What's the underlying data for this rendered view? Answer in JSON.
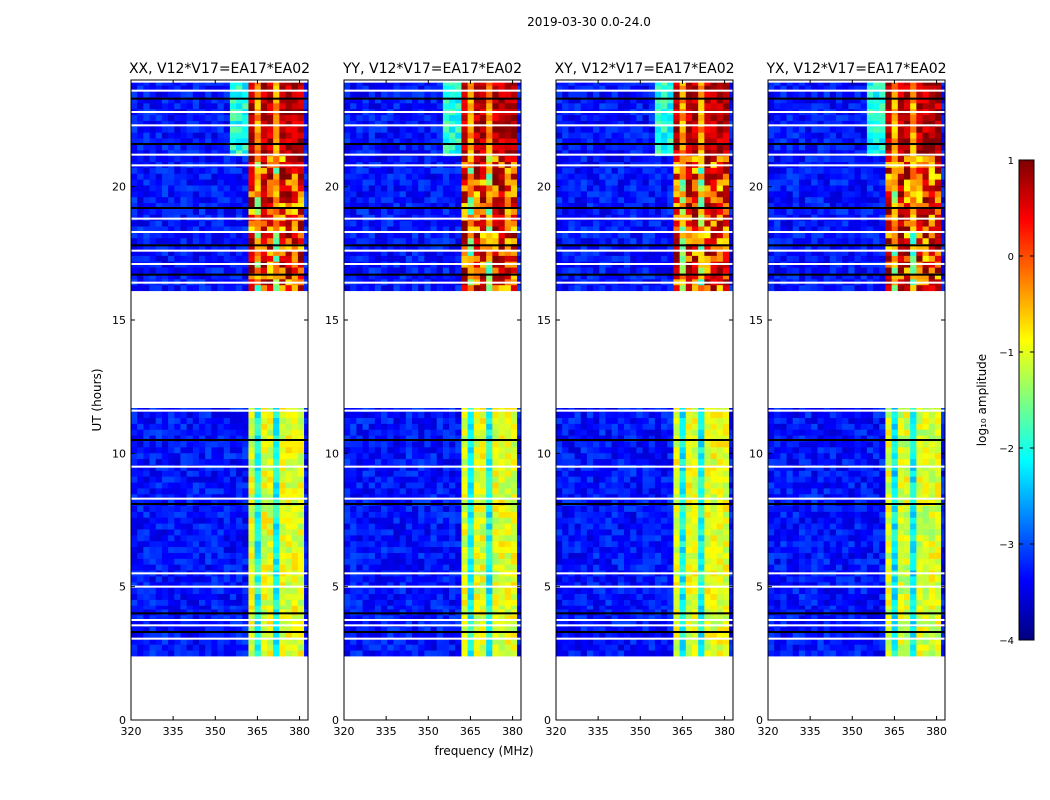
{
  "figure": {
    "suptitle": "2019-03-30 0.0-24.0",
    "ylabel": "UT (hours)",
    "xlabel": "frequency (MHz)"
  },
  "colorbar": {
    "label": "log₁₀ amplitude",
    "range": [
      -4,
      1
    ],
    "ticks": [
      "1",
      "0",
      "−1",
      "−2",
      "−3",
      "−4"
    ],
    "tick_values": [
      1,
      0,
      -1,
      -2,
      -3,
      -4
    ],
    "colormap": "jet",
    "stops": [
      "#00007f",
      "#0000ff",
      "#007fff",
      "#00ffff",
      "#7fff7f",
      "#ffff00",
      "#ff7f00",
      "#ff0000",
      "#7f0000"
    ]
  },
  "chart_data": {
    "type": "heatmap",
    "title": "2019-03-30 0.0-24.0",
    "xlabel": "frequency (MHz)",
    "ylabel": "UT (hours)",
    "xlim": [
      320,
      383
    ],
    "ylim": [
      0,
      24
    ],
    "xticks": [
      320,
      335,
      350,
      365,
      380
    ],
    "xtick_labels": [
      "320",
      "335",
      "350",
      "365",
      "380"
    ],
    "yticks": [
      0,
      5,
      10,
      15,
      20
    ],
    "ytick_labels": [
      "0",
      "5",
      "10",
      "15",
      "20"
    ],
    "zlabel": "log10 amplitude",
    "zlim": [
      -4,
      1
    ],
    "panels": [
      {
        "title": "XX, V12*V17=EA17*EA02",
        "pol": "XX"
      },
      {
        "title": "YY, V12*V17=EA17*EA02",
        "pol": "YY"
      },
      {
        "title": "XY, V12*V17=EA17*EA02",
        "pol": "XY"
      },
      {
        "title": "YX, V12*V17=EA17*EA02",
        "pol": "YX"
      }
    ],
    "data_segments_ut": [
      [
        2.4,
        4.3
      ],
      [
        4.3,
        11.7
      ],
      [
        16.1,
        23.9
      ]
    ],
    "flagged_gaps_ut": [
      [
        0,
        2.4
      ],
      [
        11.7,
        16.1
      ],
      [
        23.9,
        24
      ]
    ],
    "flagged_lines_ut": [
      3.05,
      3.3,
      3.55,
      3.75,
      4.0,
      5.0,
      5.5,
      8.1,
      8.3,
      9.5,
      10.5,
      11.6,
      16.4,
      16.7,
      17.1,
      17.6,
      17.8,
      18.3,
      18.8,
      19.2,
      20.8,
      21.2,
      21.6,
      22.3,
      22.8,
      23.3,
      23.6
    ],
    "rfi_band_mhz": [
      361.5,
      380.5
    ],
    "rfi_channels_mhz": [
      362,
      365.5,
      369,
      372.5,
      376,
      379
    ],
    "background_level": -3.3,
    "rfi_level_day": -1.5,
    "rfi_level_evening": 0.2
  }
}
